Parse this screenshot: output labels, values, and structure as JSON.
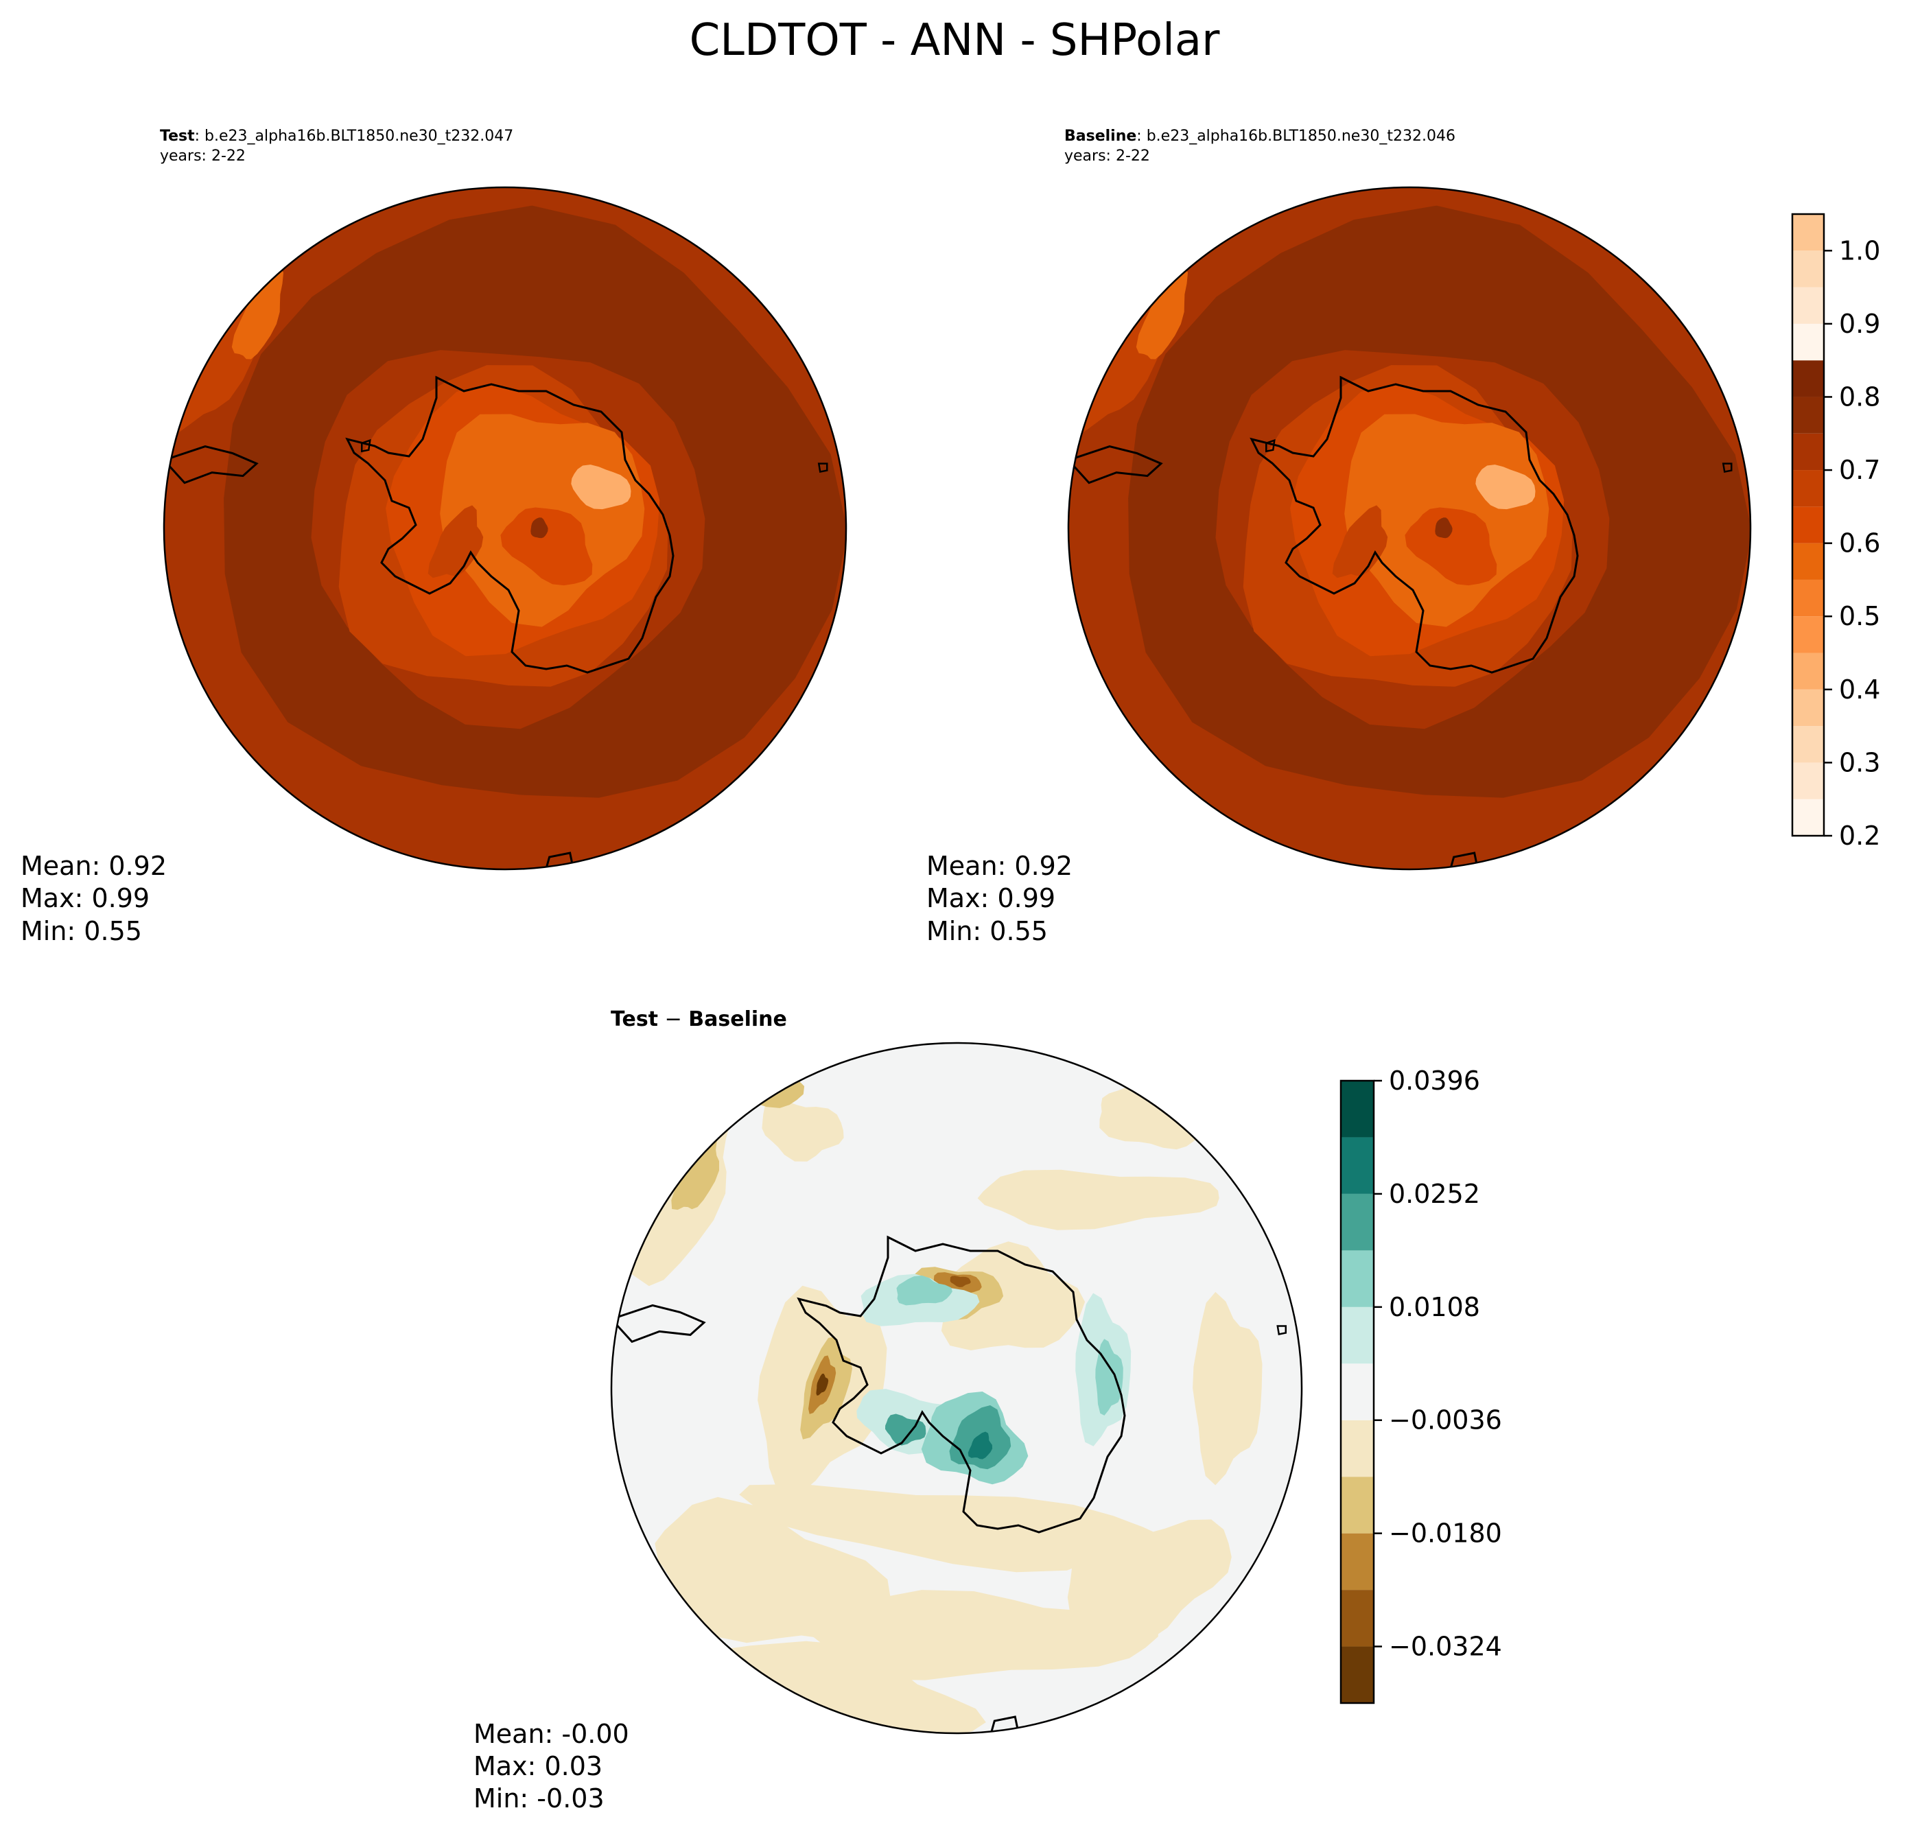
{
  "figure": {
    "title": "CLDTOT - ANN - SHPolar"
  },
  "colors": {
    "seq_levels": [
      "#fff5eb",
      "#fee6ce",
      "#fdd9b4",
      "#fdc692",
      "#fdae6b",
      "#fd9446",
      "#f67f2a",
      "#e8670c",
      "#d94801",
      "#c54102",
      "#a93403",
      "#8c2d04",
      "#7f2704"
    ],
    "div_levels": [
      "#6b3b06",
      "#955712",
      "#bd8532",
      "#dec479",
      "#f4e7c4",
      "#f3f4f4",
      "#cbebe5",
      "#8dd3c7",
      "#45a394",
      "#137a70",
      "#015045"
    ],
    "coast": "#000000"
  },
  "chart_data": [
    {
      "type": "heatmap",
      "panel": "test",
      "title_bold": "Test",
      "title_rest": ": b.e23_alpha16b.BLT1850.ne30_t232.047",
      "years": "years: 2-22",
      "projection": "south polar stereographic",
      "stats": {
        "mean": "Mean:  0.92",
        "max": "Max:  0.99",
        "min": "Min:  0.55"
      },
      "zone_levels": {
        "ocean": 11,
        "ocean_edge": 10,
        "coast_ring": 9,
        "plateau": 7,
        "interior": 8,
        "dark_spot": 10
      }
    },
    {
      "type": "heatmap",
      "panel": "baseline",
      "title_bold": "Baseline",
      "title_rest": ": b.e23_alpha16b.BLT1850.ne30_t232.046",
      "years": "years: 2-22",
      "projection": "south polar stereographic",
      "stats": {
        "mean": "Mean:  0.92",
        "max": "Max:  0.99",
        "min": "Min:  0.55"
      },
      "zone_levels": {
        "ocean": 11,
        "ocean_edge": 10,
        "coast_ring": 9,
        "plateau": 7,
        "interior": 8,
        "dark_spot": 10
      }
    },
    {
      "type": "heatmap",
      "panel": "difference",
      "title_bold": "Test",
      "title_op": " − ",
      "title_bold2": "Baseline",
      "projection": "south polar stereographic",
      "stats": {
        "mean": "Mean: -0.00",
        "max": "Max:  0.03",
        "min": "Min: -0.03"
      }
    },
    {
      "type": "colorbar",
      "for": "test/baseline",
      "range": [
        0.2,
        1.05
      ],
      "levels": [
        0.2,
        0.25,
        0.3,
        0.35,
        0.4,
        0.45,
        0.5,
        0.55,
        0.6,
        0.65,
        0.7,
        0.75,
        0.8,
        0.85,
        0.9,
        0.95,
        1.0,
        1.05
      ],
      "ticks": [
        0.2,
        0.3,
        0.4,
        0.5,
        0.6,
        0.7,
        0.8,
        0.9,
        1.0
      ],
      "tick_labels": [
        "0.2",
        "0.3",
        "0.4",
        "0.5",
        "0.6",
        "0.7",
        "0.8",
        "0.9",
        "1.0"
      ]
    },
    {
      "type": "colorbar",
      "for": "difference",
      "range": [
        -0.0396,
        0.0396
      ],
      "levels": [
        -0.0396,
        -0.0324,
        -0.0252,
        -0.018,
        -0.0108,
        -0.0036,
        0.0036,
        0.0108,
        0.018,
        0.0252,
        0.0324,
        0.0396
      ],
      "ticks": [
        -0.0324,
        -0.018,
        -0.0036,
        0.0108,
        0.0252,
        0.0396
      ],
      "tick_labels": [
        "−0.0324",
        "−0.0180",
        "−0.0036",
        "0.0108",
        "0.0252",
        "0.0396"
      ]
    }
  ]
}
